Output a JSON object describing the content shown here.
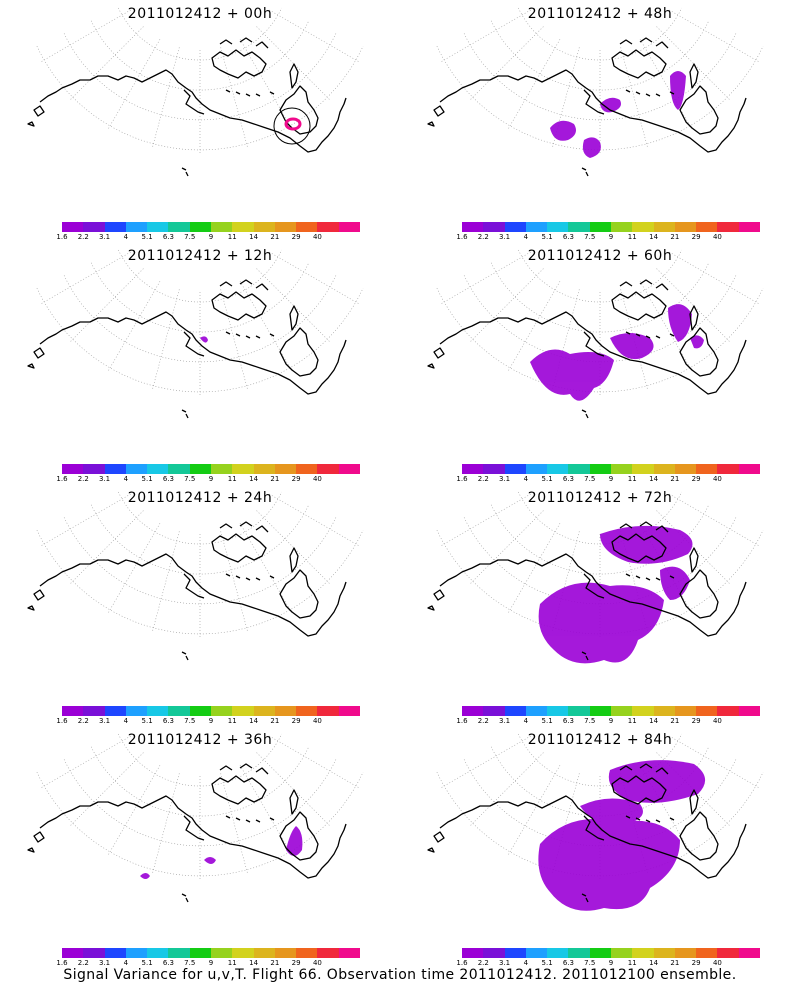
{
  "panels": [
    {
      "id": "00h",
      "title": "2011012412 + 00h",
      "extent": 0
    },
    {
      "id": "48h",
      "title": "2011012412 + 48h",
      "extent": 4
    },
    {
      "id": "12h",
      "title": "2011012412 + 12h",
      "extent": 1
    },
    {
      "id": "60h",
      "title": "2011012412 + 60h",
      "extent": 5
    },
    {
      "id": "24h",
      "title": "2011012412 + 24h",
      "extent": 2
    },
    {
      "id": "72h",
      "title": "2011012412 + 72h",
      "extent": 6
    },
    {
      "id": "36h",
      "title": "2011012412 + 36h",
      "extent": 3
    },
    {
      "id": "84h",
      "title": "2011012412 + 84h",
      "extent": 7
    }
  ],
  "colorbar": {
    "colors": [
      "#9b00d6",
      "#7a10d8",
      "#1e46ff",
      "#1ea0ff",
      "#18c8e6",
      "#14c898",
      "#14cc14",
      "#96d21e",
      "#d2d21e",
      "#dcb41e",
      "#e6961e",
      "#f0641e",
      "#f0283c",
      "#f00a8c"
    ],
    "labels": [
      "1.6",
      "2.2",
      "3.1",
      "4",
      "5.1",
      "6.3",
      "7.5",
      "9",
      "11",
      "14",
      "21",
      "29",
      "40"
    ]
  },
  "footer": "Signal Variance for u,v,T. Flight 66. Observation time 2011012412. 2011012100 ensemble.",
  "signal_color": "#9b00d6",
  "peak_color": "#f00a8c"
}
